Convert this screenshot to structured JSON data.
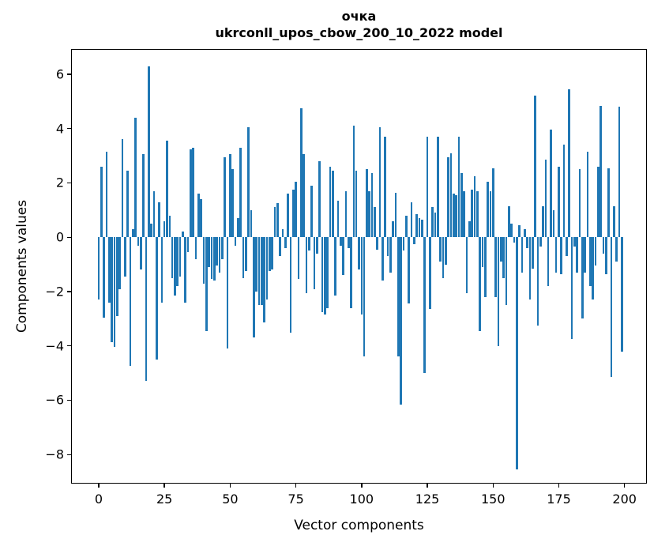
{
  "chart": {
    "title_line1": "очка",
    "title_line2": "ukrconll_upos_cbow_200_10_2022 model",
    "xlabel": "Vector components",
    "ylabel": "Components values"
  },
  "chart_data": {
    "type": "bar",
    "title": "очка\nukrconll_upos_cbow_200_10_2022 model",
    "xlabel": "Vector components",
    "ylabel": "Components values",
    "bar_color": "#1f77b4",
    "grid": false,
    "legend": null,
    "xlim": [
      -10.5,
      208.5
    ],
    "ylim": [
      -9.07,
      6.93
    ],
    "x_ticks": {
      "values": [
        0,
        25,
        50,
        75,
        100,
        125,
        150,
        175,
        200
      ],
      "labels": [
        "0",
        "25",
        "50",
        "75",
        "100",
        "125",
        "150",
        "175",
        "200"
      ]
    },
    "y_ticks": {
      "values": [
        6,
        4,
        2,
        0,
        -2,
        -4,
        -6,
        -8
      ],
      "labels": [
        "6",
        "4",
        "2",
        "0",
        "−2",
        "−4",
        "−6",
        "−8"
      ]
    },
    "x_start": 0,
    "values": [
      -2.3,
      2.6,
      -2.95,
      3.15,
      -2.4,
      -3.85,
      -4.05,
      -2.9,
      -1.9,
      3.6,
      -1.45,
      2.45,
      -4.75,
      0.3,
      4.4,
      -0.3,
      -1.2,
      3.05,
      -5.3,
      6.3,
      0.5,
      1.7,
      -4.5,
      1.3,
      -2.4,
      0.6,
      3.55,
      0.8,
      -1.5,
      -2.15,
      -1.8,
      -1.45,
      0.2,
      -2.4,
      -0.55,
      3.25,
      3.3,
      -0.8,
      1.6,
      1.4,
      -1.7,
      -3.45,
      -1.1,
      -1.55,
      -1.6,
      -1.05,
      -1.3,
      -0.8,
      2.95,
      -4.1,
      3.05,
      2.5,
      -0.3,
      0.7,
      3.3,
      -1.5,
      -1.25,
      4.05,
      1.0,
      -3.7,
      -2.0,
      -2.5,
      -2.5,
      -3.15,
      -2.3,
      -1.25,
      -1.2,
      1.1,
      1.25,
      -0.7,
      0.3,
      -0.4,
      1.6,
      -3.5,
      1.75,
      2.05,
      -1.55,
      4.75,
      3.05,
      -2.05,
      -0.5,
      1.9,
      -1.9,
      -0.6,
      2.8,
      -2.75,
      -2.85,
      -2.6,
      2.6,
      2.45,
      -2.15,
      1.35,
      -0.3,
      -1.4,
      1.7,
      -0.4,
      -2.6,
      4.1,
      2.45,
      -1.2,
      -2.85,
      -4.4,
      2.5,
      1.7,
      2.35,
      1.1,
      -0.45,
      4.05,
      -1.6,
      3.7,
      -0.7,
      -1.3,
      0.6,
      1.65,
      -4.4,
      -6.15,
      -0.5,
      0.8,
      -2.45,
      1.3,
      -0.25,
      0.85,
      0.7,
      0.65,
      -5.0,
      3.7,
      -2.65,
      1.1,
      0.9,
      3.7,
      -0.9,
      -1.5,
      -1.0,
      2.95,
      3.1,
      1.6,
      1.55,
      3.7,
      2.35,
      1.7,
      -2.05,
      0.6,
      1.75,
      2.25,
      1.7,
      -3.45,
      -1.1,
      -2.2,
      2.05,
      1.7,
      2.55,
      -2.2,
      -4.0,
      -0.9,
      -1.5,
      -2.5,
      1.15,
      0.5,
      -0.2,
      -8.55,
      0.45,
      -1.3,
      0.3,
      -0.4,
      -2.3,
      -1.15,
      5.2,
      -3.25,
      -0.35,
      1.15,
      2.85,
      -1.8,
      3.95,
      1.0,
      -1.3,
      2.6,
      -1.35,
      3.4,
      -0.7,
      5.45,
      -3.75,
      -0.35,
      -1.3,
      2.5,
      -3.0,
      -1.3,
      3.15,
      -1.8,
      -2.3,
      -1.05,
      2.6,
      4.85,
      -0.6,
      -1.35,
      2.55,
      -5.15,
      1.15,
      -0.9,
      4.8,
      -4.2
    ]
  }
}
